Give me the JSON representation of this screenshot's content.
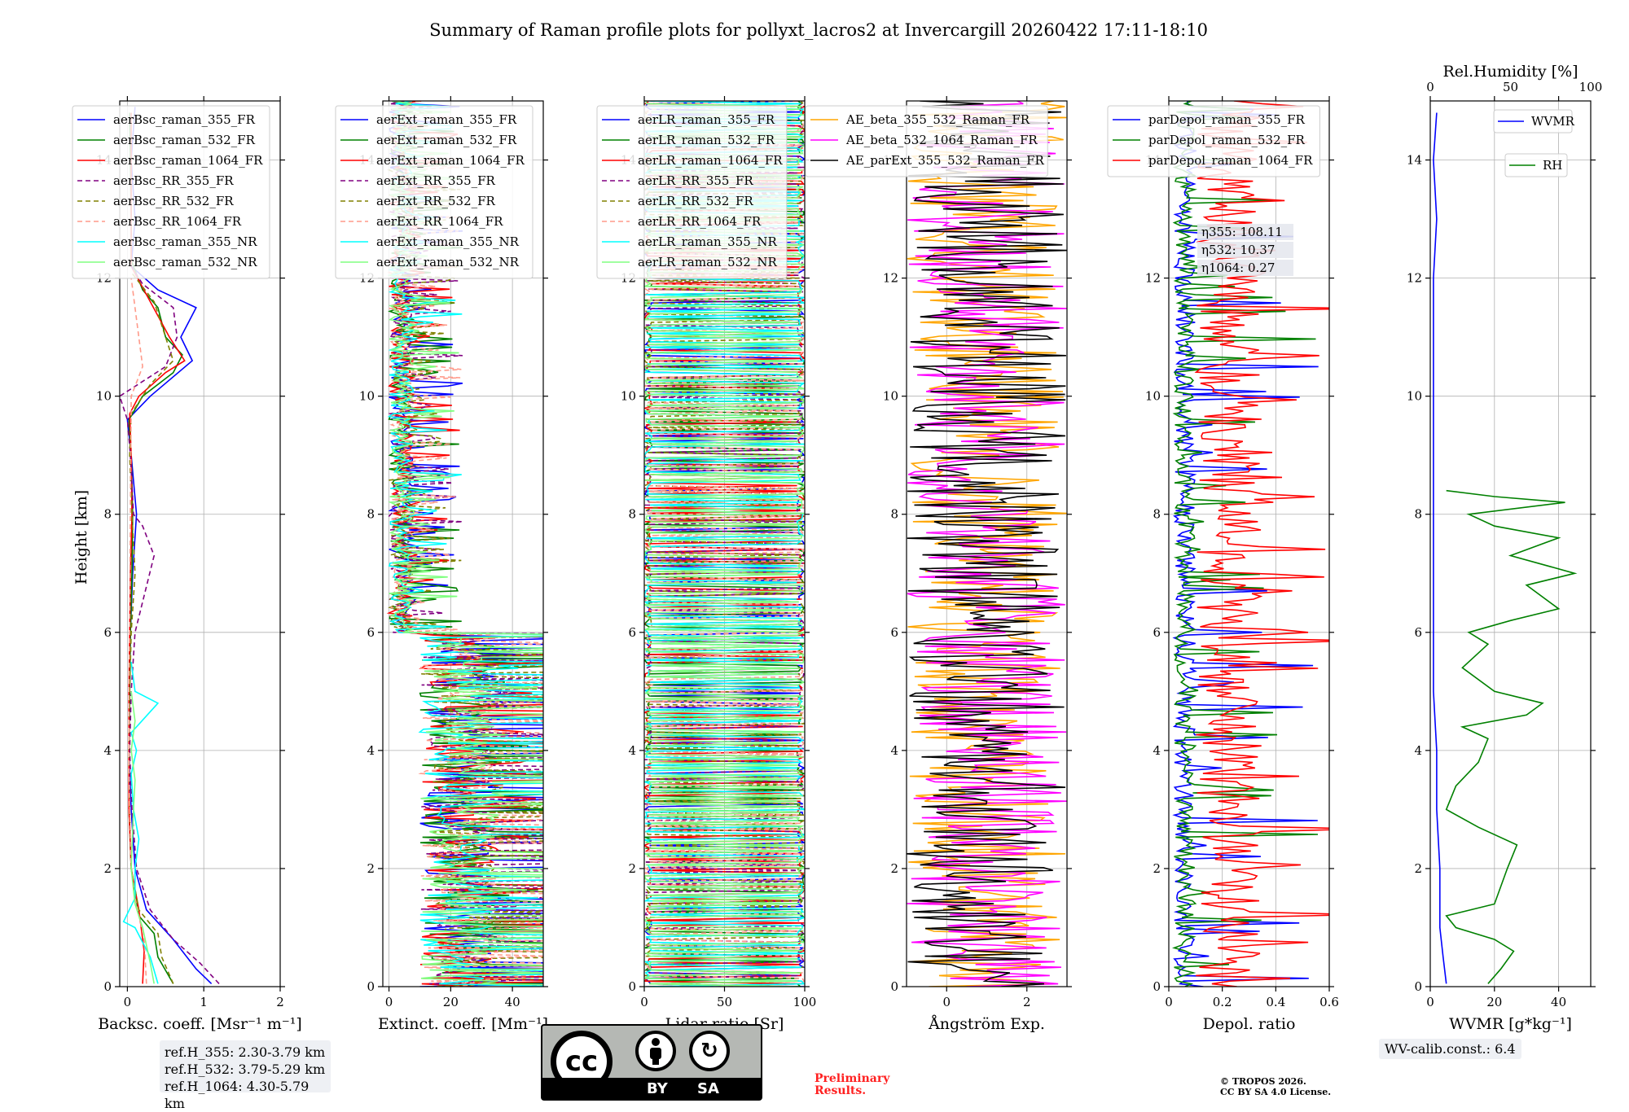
{
  "figure": {
    "title": "Summary of Raman profile plots for pollyxt_lacros2 at Invercargill 20260422 17:11-18:10",
    "ylabel": "Height [km]"
  },
  "ref_heights": [
    "ref.H_355: 2.30-3.79 km",
    "ref.H_532: 3.79-5.29 km",
    "ref.H_1064: 4.30-5.79 km"
  ],
  "wv_calib": "WV-calib.const.: 6.4",
  "preliminary": [
    "Preliminary",
    "Results."
  ],
  "copyright": [
    "© TROPOS 2026.",
    "CC BY SA 4.0 License."
  ],
  "license_badge": {
    "by": "BY",
    "sa": "SA",
    "cc": "cc"
  },
  "chart_data": [
    {
      "type": "line",
      "panel": "backscatter",
      "xlabel": "Backsc. coeff. [Msr⁻¹ m⁻¹]",
      "xlim": [
        -0.1,
        2.0
      ],
      "ylim": [
        0,
        15
      ],
      "xticks": [
        0,
        1,
        2
      ],
      "yticks": [
        0,
        2,
        4,
        6,
        8,
        10,
        12,
        14
      ],
      "legend": "top-left",
      "series": [
        {
          "name": "aerBsc_raman_355_FR",
          "color": "#0000ff",
          "dash": false,
          "points": [
            [
              1.1,
              0.05
            ],
            [
              0.9,
              0.3
            ],
            [
              0.6,
              0.8
            ],
            [
              0.25,
              1.3
            ],
            [
              0.1,
              2
            ],
            [
              0.05,
              3
            ],
            [
              0.02,
              4
            ],
            [
              0.03,
              5
            ],
            [
              0.04,
              6
            ],
            [
              0.07,
              7
            ],
            [
              0.12,
              8
            ],
            [
              0.05,
              9
            ],
            [
              0.0,
              9.6
            ],
            [
              0.3,
              10
            ],
            [
              0.85,
              10.6
            ],
            [
              0.7,
              11
            ],
            [
              0.9,
              11.5
            ],
            [
              0.4,
              11.8
            ],
            [
              0.05,
              12.2
            ],
            [
              0.1,
              13
            ],
            [
              0.05,
              14
            ],
            [
              0.1,
              14.9
            ]
          ]
        },
        {
          "name": "aerBsc_raman_532_FR",
          "color": "#008000",
          "dash": false,
          "points": [
            [
              0.6,
              0.05
            ],
            [
              0.4,
              0.5
            ],
            [
              0.35,
              0.9
            ],
            [
              0.15,
              1.2
            ],
            [
              0.05,
              2
            ],
            [
              0.02,
              3
            ],
            [
              0.02,
              4
            ],
            [
              0.03,
              5
            ],
            [
              0.04,
              6
            ],
            [
              0.06,
              7
            ],
            [
              0.07,
              8
            ],
            [
              0.05,
              9
            ],
            [
              0.02,
              9.6
            ],
            [
              0.2,
              10
            ],
            [
              0.6,
              10.4
            ],
            [
              0.72,
              10.7
            ],
            [
              0.5,
              11
            ],
            [
              0.4,
              11.5
            ],
            [
              0.2,
              11.8
            ],
            [
              0.05,
              12.3
            ],
            [
              0.05,
              13
            ],
            [
              0.03,
              14.8
            ]
          ]
        },
        {
          "name": "aerBsc_raman_1064_FR",
          "color": "#ff0000",
          "dash": false,
          "points": [
            [
              0.2,
              0.05
            ],
            [
              0.22,
              0.6
            ],
            [
              0.15,
              1.3
            ],
            [
              0.05,
              2
            ],
            [
              0.02,
              3
            ],
            [
              0.02,
              4
            ],
            [
              0.02,
              5
            ],
            [
              0.03,
              6
            ],
            [
              0.04,
              7
            ],
            [
              0.06,
              8
            ],
            [
              0.05,
              9
            ],
            [
              0.03,
              9.7
            ],
            [
              0.15,
              10
            ],
            [
              0.5,
              10.4
            ],
            [
              0.75,
              10.6
            ],
            [
              0.55,
              11
            ],
            [
              0.3,
              11.6
            ],
            [
              0.05,
              12.2
            ],
            [
              0.05,
              14.8
            ]
          ]
        },
        {
          "name": "aerBsc_RR_355_FR",
          "color": "#800080",
          "dash": true,
          "points": [
            [
              1.2,
              0.05
            ],
            [
              0.95,
              0.4
            ],
            [
              0.6,
              0.8
            ],
            [
              0.3,
              1.3
            ],
            [
              0.12,
              2
            ],
            [
              0.06,
              3
            ],
            [
              0.03,
              4
            ],
            [
              0.05,
              5
            ],
            [
              0.1,
              6
            ],
            [
              0.35,
              7.3
            ],
            [
              0.2,
              7.8
            ],
            [
              0.08,
              8
            ],
            [
              0.04,
              9
            ],
            [
              0.0,
              9.6
            ],
            [
              -0.1,
              10
            ],
            [
              0.5,
              10.5
            ],
            [
              0.65,
              11
            ],
            [
              0.6,
              11.5
            ],
            [
              0.2,
              11.9
            ],
            [
              0.05,
              12.2
            ]
          ]
        },
        {
          "name": "aerBsc_RR_532_FR",
          "color": "#808000",
          "dash": true,
          "points": [
            [
              0.6,
              0.05
            ],
            [
              0.45,
              0.5
            ],
            [
              0.4,
              0.9
            ],
            [
              0.15,
              1.3
            ],
            [
              0.05,
              2
            ],
            [
              0.03,
              3
            ],
            [
              0.02,
              4
            ],
            [
              0.03,
              5
            ],
            [
              0.05,
              6
            ],
            [
              0.1,
              7
            ],
            [
              0.06,
              8
            ],
            [
              0.03,
              9
            ],
            [
              0.05,
              9.7
            ],
            [
              0.3,
              10.2
            ],
            [
              0.6,
              10.6
            ],
            [
              0.5,
              11
            ],
            [
              0.35,
              11.6
            ],
            [
              0.05,
              12.1
            ]
          ]
        },
        {
          "name": "aerBsc_RR_1064_FR",
          "color": "#ff9a8a",
          "dash": true,
          "points": [
            [
              0.25,
              0.05
            ],
            [
              0.22,
              0.8
            ],
            [
              0.1,
              1.5
            ],
            [
              0.05,
              2
            ],
            [
              0.03,
              3
            ],
            [
              0.02,
              4
            ],
            [
              0.02,
              5
            ],
            [
              0.03,
              6
            ],
            [
              0.04,
              8
            ],
            [
              0.05,
              10
            ],
            [
              0.2,
              10.5
            ],
            [
              0.05,
              12
            ]
          ]
        },
        {
          "name": "aerBsc_raman_355_NR",
          "color": "#00ffff",
          "dash": false,
          "points": [
            [
              0.4,
              0.05
            ],
            [
              0.3,
              0.5
            ],
            [
              0.1,
              1.0
            ],
            [
              -0.05,
              1.1
            ],
            [
              0.1,
              1.5
            ],
            [
              0.1,
              2.0
            ],
            [
              0.15,
              2.5
            ],
            [
              0.08,
              3
            ],
            [
              0.05,
              3.6
            ],
            [
              0.12,
              4.0
            ],
            [
              0.05,
              4.3
            ],
            [
              0.4,
              4.8
            ],
            [
              0.1,
              5.0
            ],
            [
              0.05,
              5.5
            ]
          ]
        },
        {
          "name": "aerBsc_raman_532_NR",
          "color": "#80ff80",
          "dash": false,
          "points": [
            [
              0.35,
              0.05
            ],
            [
              0.3,
              0.4
            ],
            [
              0.2,
              1.0
            ],
            [
              0.1,
              1.4
            ],
            [
              0.05,
              2.0
            ],
            [
              0.08,
              3
            ],
            [
              0.1,
              3.5
            ],
            [
              0.05,
              4
            ],
            [
              0.1,
              4.5
            ],
            [
              0.05,
              5.0
            ]
          ]
        }
      ]
    },
    {
      "type": "line",
      "panel": "extinction",
      "xlabel": "Extinct. coeff. [Mm⁻¹]",
      "xlim": [
        -2,
        50
      ],
      "ylim": [
        0,
        15
      ],
      "xticks": [
        0,
        20,
        40
      ],
      "legend": "top-left",
      "series": [
        {
          "name": "aerExt_raman_355_FR",
          "color": "#0000ff",
          "dash": false
        },
        {
          "name": "aerExt_raman_532_FR",
          "color": "#008000",
          "dash": false
        },
        {
          "name": "aerExt_raman_1064_FR",
          "color": "#ff0000",
          "dash": false
        },
        {
          "name": "aerExt_RR_355_FR",
          "color": "#800080",
          "dash": true
        },
        {
          "name": "aerExt_RR_532_FR",
          "color": "#808000",
          "dash": true
        },
        {
          "name": "aerExt_RR_1064_FR",
          "color": "#ff9a8a",
          "dash": true
        },
        {
          "name": "aerExt_raman_355_NR",
          "color": "#00ffff",
          "dash": false
        },
        {
          "name": "aerExt_raman_532_NR",
          "color": "#80ff80",
          "dash": false
        }
      ]
    },
    {
      "type": "line",
      "panel": "lidar_ratio",
      "xlabel": "Lidar ratio [Sr]",
      "xlim": [
        0,
        100
      ],
      "ylim": [
        0,
        15
      ],
      "xticks": [
        0,
        50,
        100
      ],
      "legend": "top-left",
      "series": [
        {
          "name": "aerLR_raman_355_FR",
          "color": "#0000ff",
          "dash": false
        },
        {
          "name": "aerLR_raman_532_FR",
          "color": "#008000",
          "dash": false
        },
        {
          "name": "aerLR_raman_1064_FR",
          "color": "#ff0000",
          "dash": false
        },
        {
          "name": "aerLR_RR_355_FR",
          "color": "#800080",
          "dash": true
        },
        {
          "name": "aerLR_RR_532_FR",
          "color": "#808000",
          "dash": true
        },
        {
          "name": "aerLR_RR_1064_FR",
          "color": "#ff9a8a",
          "dash": true
        },
        {
          "name": "aerLR_raman_355_NR",
          "color": "#00ffff",
          "dash": false
        },
        {
          "name": "aerLR_raman_532_NR",
          "color": "#80ff80",
          "dash": false
        }
      ]
    },
    {
      "type": "line",
      "panel": "angstrom",
      "xlabel": "Ångström Exp.",
      "xlim": [
        -1,
        3
      ],
      "ylim": [
        0,
        15
      ],
      "xticks": [
        0,
        2
      ],
      "legend": "top-right",
      "series": [
        {
          "name": "AE_beta_355_532_Raman_FR",
          "color": "#ffa500",
          "dash": false
        },
        {
          "name": "AE_beta_532_1064_Raman_FR",
          "color": "#ff00ff",
          "dash": false
        },
        {
          "name": "AE_parExt_355_532_Raman_FR",
          "color": "#000000",
          "dash": false
        }
      ]
    },
    {
      "type": "line",
      "panel": "depolarization",
      "xlabel": "Depol. ratio",
      "xlim": [
        0,
        0.6
      ],
      "ylim": [
        0,
        15
      ],
      "xticks": [
        0.0,
        0.2,
        0.4,
        0.6
      ],
      "legend": "top-left",
      "eta": [
        "η355: 108.11",
        "η532: 10.37",
        "η1064: 0.27"
      ],
      "series": [
        {
          "name": "parDepol_raman_355_FR",
          "color": "#0000ff",
          "dash": false
        },
        {
          "name": "parDepol_raman_532_FR",
          "color": "#008000",
          "dash": false
        },
        {
          "name": "parDepol_raman_1064_FR",
          "color": "#ff0000",
          "dash": false
        }
      ]
    },
    {
      "type": "line",
      "panel": "water_vapor",
      "xlabel": "WVMR [g*kg⁻¹]",
      "xlim": [
        0,
        50
      ],
      "ylim": [
        0,
        15
      ],
      "xticks": [
        0,
        20,
        40
      ],
      "top_xlabel": "Rel.Humidity [%]",
      "top_xlim": [
        0,
        100
      ],
      "top_xticks": [
        0,
        50,
        100
      ],
      "series": [
        {
          "name": "WVMR",
          "color": "#0000ff",
          "dash": false,
          "points": [
            [
              5,
              0.05
            ],
            [
              4,
              0.5
            ],
            [
              3,
              1.0
            ],
            [
              3,
              2
            ],
            [
              2,
              3
            ],
            [
              2,
              4
            ],
            [
              1,
              5
            ],
            [
              1,
              6
            ],
            [
              1,
              7
            ],
            [
              1,
              8
            ],
            [
              1,
              9
            ],
            [
              1,
              10
            ],
            [
              1,
              11
            ],
            [
              1,
              12
            ],
            [
              2,
              13
            ],
            [
              1,
              14
            ],
            [
              2,
              14.8
            ]
          ]
        },
        {
          "name": "RH",
          "color": "#008000",
          "dash": false,
          "points": [
            [
              18,
              0.05
            ],
            [
              22,
              0.3
            ],
            [
              26,
              0.6
            ],
            [
              20,
              0.8
            ],
            [
              8,
              1.0
            ],
            [
              5,
              1.2
            ],
            [
              20,
              1.4
            ],
            [
              24,
              2.0
            ],
            [
              27,
              2.4
            ],
            [
              15,
              2.7
            ],
            [
              5,
              3.0
            ],
            [
              8,
              3.4
            ],
            [
              15,
              3.8
            ],
            [
              18,
              4.2
            ],
            [
              10,
              4.4
            ],
            [
              30,
              4.6
            ],
            [
              35,
              4.8
            ],
            [
              20,
              5.0
            ],
            [
              10,
              5.4
            ],
            [
              18,
              5.8
            ],
            [
              12,
              6.0
            ],
            [
              25,
              6.2
            ],
            [
              40,
              6.4
            ],
            [
              30,
              6.8
            ],
            [
              45,
              7.0
            ],
            [
              25,
              7.3
            ],
            [
              40,
              7.6
            ],
            [
              20,
              7.8
            ],
            [
              12,
              8.0
            ],
            [
              42,
              8.2
            ],
            [
              20,
              8.3
            ],
            [
              5,
              8.4
            ]
          ]
        }
      ]
    }
  ]
}
